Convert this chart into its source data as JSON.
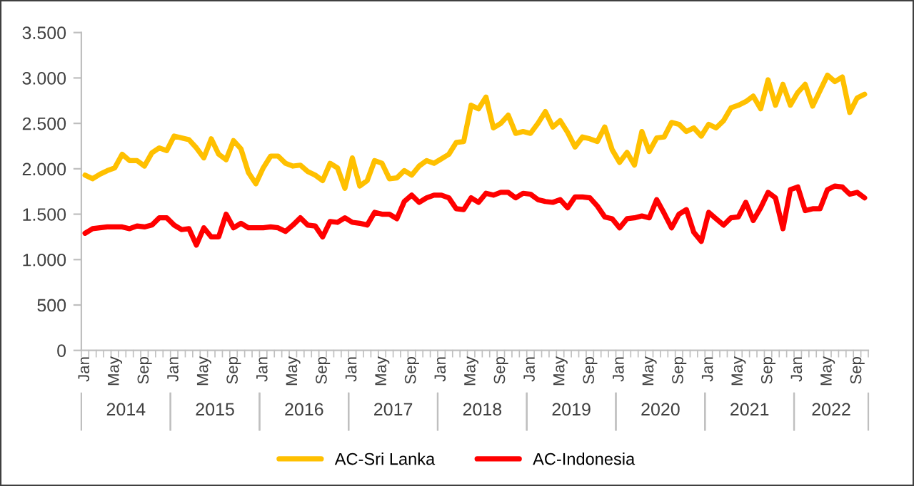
{
  "chart_data": {
    "type": "line",
    "categories": [
      "Jan",
      null,
      null,
      null,
      "May",
      null,
      null,
      null,
      "Sep",
      null,
      null,
      null,
      "Jan",
      null,
      null,
      null,
      "May",
      null,
      null,
      null,
      "Sep",
      null,
      null,
      null,
      "Jan",
      null,
      null,
      null,
      "May",
      null,
      null,
      null,
      "Sep",
      null,
      null,
      null,
      "Jan",
      null,
      null,
      null,
      "May",
      null,
      null,
      null,
      "Sep",
      null,
      null,
      null,
      "Jan",
      null,
      null,
      null,
      "May",
      null,
      null,
      null,
      "Sep",
      null,
      null,
      null,
      "Jan",
      null,
      null,
      null,
      "May",
      null,
      null,
      null,
      "Sep",
      null,
      null,
      null,
      "Jan",
      null,
      null,
      null,
      "May",
      null,
      null,
      null,
      "Sep",
      null,
      null,
      null,
      "Jan",
      null,
      null,
      null,
      "May",
      null,
      null,
      null,
      "Sep",
      null,
      null,
      null,
      "Jan",
      null,
      null,
      null,
      "May",
      null,
      null,
      null,
      "Sep",
      null
    ],
    "series": [
      {
        "name": "AC-Sri Lanka",
        "color": "#ffc000",
        "values": [
          1930,
          1890,
          1940,
          1980,
          2010,
          2160,
          2090,
          2090,
          2030,
          2175,
          2230,
          2200,
          2360,
          2340,
          2320,
          2230,
          2120,
          2330,
          2160,
          2100,
          2310,
          2220,
          1960,
          1835,
          2010,
          2140,
          2140,
          2060,
          2030,
          2040,
          1970,
          1930,
          1870,
          2060,
          2010,
          1785,
          2120,
          1810,
          1870,
          2090,
          2060,
          1890,
          1900,
          1980,
          1930,
          2030,
          2090,
          2060,
          2110,
          2160,
          2290,
          2300,
          2700,
          2660,
          2790,
          2450,
          2500,
          2590,
          2390,
          2410,
          2390,
          2500,
          2630,
          2460,
          2530,
          2400,
          2240,
          2350,
          2330,
          2300,
          2460,
          2210,
          2070,
          2180,
          2040,
          2410,
          2190,
          2340,
          2350,
          2510,
          2490,
          2410,
          2450,
          2360,
          2490,
          2450,
          2530,
          2670,
          2700,
          2740,
          2800,
          2660,
          2980,
          2700,
          2930,
          2700,
          2840,
          2930,
          2690,
          2860,
          3030,
          2960,
          3010,
          2620,
          2780,
          2820
        ]
      },
      {
        "name": "AC-Indonesia",
        "color": "#ff0000",
        "values": [
          1290,
          1340,
          1350,
          1360,
          1360,
          1360,
          1340,
          1370,
          1360,
          1380,
          1460,
          1460,
          1380,
          1330,
          1340,
          1160,
          1350,
          1250,
          1250,
          1500,
          1350,
          1400,
          1350,
          1350,
          1350,
          1360,
          1350,
          1310,
          1380,
          1460,
          1380,
          1370,
          1250,
          1420,
          1410,
          1460,
          1410,
          1400,
          1380,
          1520,
          1500,
          1500,
          1450,
          1640,
          1710,
          1630,
          1680,
          1710,
          1710,
          1680,
          1560,
          1550,
          1680,
          1630,
          1730,
          1710,
          1740,
          1740,
          1680,
          1730,
          1720,
          1660,
          1640,
          1630,
          1660,
          1570,
          1690,
          1690,
          1680,
          1590,
          1470,
          1450,
          1350,
          1450,
          1460,
          1480,
          1460,
          1660,
          1510,
          1350,
          1500,
          1550,
          1300,
          1200,
          1520,
          1450,
          1380,
          1460,
          1470,
          1630,
          1430,
          1570,
          1740,
          1680,
          1340,
          1770,
          1800,
          1540,
          1560,
          1560,
          1770,
          1810,
          1800,
          1720,
          1740,
          1680
        ]
      }
    ],
    "ylim": [
      0,
      3500
    ],
    "yticks": [
      {
        "value": 0,
        "label": "0"
      },
      {
        "value": 500,
        "label": "500"
      },
      {
        "value": 1000,
        "label": "1.000"
      },
      {
        "value": 1500,
        "label": "1.500"
      },
      {
        "value": 2000,
        "label": "2.000"
      },
      {
        "value": 2500,
        "label": "2.500"
      },
      {
        "value": 3000,
        "label": "3.000"
      },
      {
        "value": 3500,
        "label": "3.500"
      }
    ],
    "annotations": [
      "2014",
      "2015",
      "2016",
      "2017",
      "2018",
      "2019",
      "2020",
      "2021",
      "2022"
    ],
    "grid": false,
    "legend": "bottom",
    "marker": "none",
    "line_style": "solid"
  }
}
